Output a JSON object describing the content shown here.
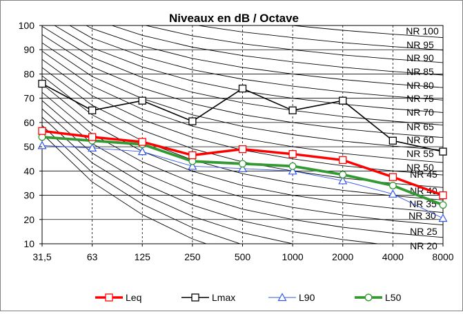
{
  "chart_data": {
    "type": "line",
    "title": "Niveaux en dB / Octave",
    "xlabel": "",
    "ylabel": "",
    "categories": [
      "31,5",
      "63",
      "125",
      "250",
      "500",
      "1000",
      "2000",
      "4000",
      "8000"
    ],
    "ylim": [
      10,
      100
    ],
    "yticks": [
      10,
      20,
      30,
      40,
      50,
      60,
      70,
      80,
      90,
      100
    ],
    "grid": true,
    "legend_position": "bottom",
    "series": [
      {
        "name": "Leq",
        "color": "#ff0000",
        "marker": "square",
        "values": [
          56.5,
          54,
          52,
          46.5,
          49,
          47,
          44.5,
          37.5,
          30
        ]
      },
      {
        "name": "Lmax",
        "color": "#000000",
        "marker": "square",
        "values": [
          76,
          65,
          69,
          60.5,
          74,
          65,
          69,
          52.5,
          48
        ]
      },
      {
        "name": "L90",
        "color": "#3355ee",
        "marker": "triangle",
        "values": [
          50.5,
          49.5,
          48,
          42,
          41,
          40,
          36,
          30.5,
          20.5
        ]
      },
      {
        "name": "L50",
        "color": "#339933",
        "marker": "circle",
        "values": [
          54,
          52.5,
          51,
          44,
          43,
          42,
          38.5,
          34,
          26
        ]
      }
    ],
    "nr_curves": {
      "labels": [
        "NR 100",
        "NR 95",
        "NR 90",
        "NR 85",
        "NR 80",
        "NR 75",
        "NR 70",
        "NR 65",
        "NR 60",
        "NR 55",
        "NR 50",
        "NR 45",
        "NR 40",
        "NR 35",
        "NR 30",
        "NR 25",
        "NR 20"
      ]
    }
  }
}
